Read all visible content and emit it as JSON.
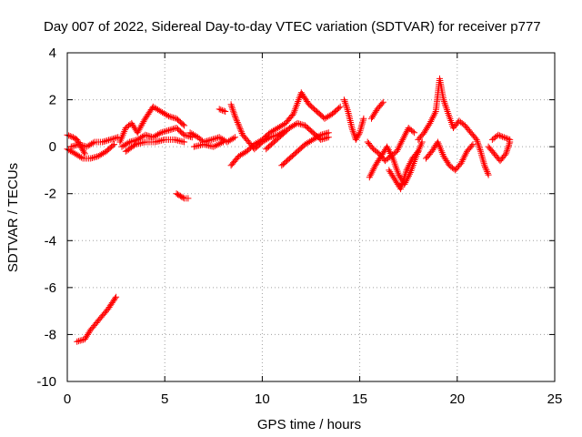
{
  "chart_data": {
    "type": "scatter",
    "title": "Day 007 of 2022, Sidereal Day-to-day VTEC variation (SDTVAR) for receiver p777",
    "xlabel": "GPS time / hours",
    "ylabel": "SDTVAR / TECUs",
    "xlim": [
      0,
      25
    ],
    "ylim": [
      -10,
      4
    ],
    "xticks": [
      "0",
      "5",
      "10",
      "15",
      "20",
      "25"
    ],
    "yticks": [
      "4",
      "2",
      "0",
      "-2",
      "-4",
      "-6",
      "-8",
      "-10"
    ],
    "grid": true,
    "marker": "+",
    "color": "#ff0000",
    "series": [
      {
        "name": "SDTVAR",
        "segments": [
          [
            [
              0.5,
              -8.3
            ],
            [
              0.9,
              -8.2
            ],
            [
              1.2,
              -7.8
            ],
            [
              1.5,
              -7.5
            ],
            [
              1.8,
              -7.2
            ],
            [
              2.1,
              -6.9
            ],
            [
              2.5,
              -6.4
            ]
          ],
          [
            [
              0.0,
              0.5
            ],
            [
              0.3,
              0.4
            ],
            [
              0.5,
              0.3
            ],
            [
              0.7,
              0.0
            ],
            [
              0.9,
              -0.3
            ]
          ],
          [
            [
              0.0,
              -0.1
            ],
            [
              0.4,
              -0.3
            ],
            [
              0.8,
              -0.5
            ],
            [
              1.2,
              -0.5
            ],
            [
              1.6,
              -0.4
            ],
            [
              2.0,
              -0.2
            ],
            [
              2.4,
              0.1
            ]
          ],
          [
            [
              0.2,
              0.0
            ],
            [
              0.6,
              0.1
            ],
            [
              1.0,
              0.0
            ],
            [
              1.4,
              0.2
            ],
            [
              1.8,
              0.2
            ],
            [
              2.2,
              0.3
            ],
            [
              2.6,
              0.4
            ]
          ],
          [
            [
              2.7,
              0.2
            ],
            [
              3.0,
              0.8
            ],
            [
              3.3,
              1.0
            ],
            [
              3.6,
              0.6
            ],
            [
              4.0,
              1.2
            ],
            [
              4.4,
              1.7
            ],
            [
              4.8,
              1.5
            ],
            [
              5.2,
              1.3
            ],
            [
              5.6,
              1.2
            ],
            [
              6.0,
              0.9
            ]
          ],
          [
            [
              2.8,
              0.0
            ],
            [
              3.2,
              0.2
            ],
            [
              3.6,
              0.3
            ],
            [
              4.0,
              0.5
            ],
            [
              4.4,
              0.4
            ],
            [
              4.8,
              0.6
            ],
            [
              5.2,
              0.7
            ],
            [
              5.6,
              0.8
            ],
            [
              6.0,
              0.5
            ],
            [
              6.4,
              0.4
            ]
          ],
          [
            [
              3.0,
              -0.2
            ],
            [
              3.5,
              0.1
            ],
            [
              4.0,
              0.2
            ],
            [
              4.5,
              0.2
            ],
            [
              5.0,
              0.3
            ],
            [
              5.5,
              0.3
            ],
            [
              6.0,
              0.2
            ]
          ],
          [
            [
              5.6,
              -2.0
            ],
            [
              5.8,
              -2.1
            ],
            [
              6.0,
              -2.2
            ],
            [
              6.2,
              -2.2
            ]
          ],
          [
            [
              6.3,
              0.6
            ],
            [
              6.7,
              0.4
            ],
            [
              7.0,
              0.2
            ],
            [
              7.4,
              0.3
            ],
            [
              7.8,
              0.4
            ],
            [
              8.2,
              0.2
            ],
            [
              8.6,
              0.4
            ]
          ],
          [
            [
              6.5,
              0.0
            ],
            [
              7.0,
              0.1
            ],
            [
              7.5,
              0.0
            ],
            [
              8.0,
              0.2
            ]
          ],
          [
            [
              7.8,
              1.6
            ],
            [
              8.1,
              1.5
            ]
          ],
          [
            [
              8.4,
              1.8
            ],
            [
              8.6,
              1.3
            ],
            [
              8.8,
              0.9
            ],
            [
              9.0,
              0.5
            ],
            [
              9.3,
              0.2
            ],
            [
              9.6,
              -0.1
            ],
            [
              10.0,
              0.2
            ],
            [
              10.4,
              0.4
            ],
            [
              10.8,
              0.5
            ],
            [
              11.2,
              0.7
            ]
          ],
          [
            [
              8.4,
              -0.8
            ],
            [
              8.8,
              -0.4
            ],
            [
              9.2,
              -0.2
            ],
            [
              9.6,
              0.1
            ],
            [
              10.0,
              0.3
            ],
            [
              10.4,
              0.6
            ],
            [
              10.8,
              0.8
            ],
            [
              11.2,
              1.0
            ],
            [
              11.6,
              1.4
            ],
            [
              12.0,
              2.3
            ],
            [
              12.4,
              1.8
            ],
            [
              12.8,
              1.5
            ],
            [
              13.2,
              1.2
            ],
            [
              13.6,
              1.4
            ],
            [
              14.0,
              1.7
            ]
          ],
          [
            [
              10.2,
              -0.1
            ],
            [
              10.6,
              0.2
            ],
            [
              11.0,
              0.5
            ],
            [
              11.4,
              0.8
            ],
            [
              11.8,
              1.0
            ],
            [
              12.2,
              0.9
            ],
            [
              12.6,
              0.6
            ],
            [
              13.0,
              0.3
            ],
            [
              13.4,
              0.4
            ]
          ],
          [
            [
              11.0,
              -0.8
            ],
            [
              11.4,
              -0.5
            ],
            [
              11.8,
              -0.2
            ],
            [
              12.2,
              0.1
            ],
            [
              12.6,
              0.3
            ],
            [
              13.0,
              0.5
            ],
            [
              13.4,
              0.6
            ]
          ],
          [
            [
              14.2,
              2.0
            ],
            [
              14.4,
              1.5
            ],
            [
              14.6,
              0.8
            ],
            [
              14.8,
              0.3
            ],
            [
              15.0,
              0.6
            ],
            [
              15.2,
              1.2
            ]
          ],
          [
            [
              15.6,
              1.2
            ],
            [
              15.9,
              1.6
            ],
            [
              16.2,
              1.9
            ]
          ],
          [
            [
              15.4,
              0.2
            ],
            [
              15.7,
              -0.1
            ],
            [
              16.0,
              -0.3
            ],
            [
              16.3,
              -0.6
            ],
            [
              16.6,
              -0.4
            ],
            [
              16.9,
              -0.2
            ],
            [
              17.2,
              0.3
            ],
            [
              17.5,
              0.8
            ],
            [
              17.8,
              0.6
            ]
          ],
          [
            [
              15.5,
              -1.3
            ],
            [
              15.8,
              -0.8
            ],
            [
              16.1,
              -0.4
            ],
            [
              16.4,
              0.0
            ],
            [
              16.7,
              -0.5
            ],
            [
              17.0,
              -1.2
            ],
            [
              17.3,
              -1.6
            ],
            [
              17.6,
              -1.1
            ],
            [
              17.9,
              -0.4
            ],
            [
              18.2,
              0.2
            ]
          ],
          [
            [
              16.5,
              -1.0
            ],
            [
              16.8,
              -1.4
            ],
            [
              17.1,
              -1.8
            ],
            [
              17.4,
              -1.0
            ],
            [
              17.7,
              -0.5
            ],
            [
              18.0,
              -0.2
            ]
          ],
          [
            [
              18.0,
              0.3
            ],
            [
              18.3,
              0.6
            ],
            [
              18.6,
              1.0
            ],
            [
              18.9,
              1.5
            ],
            [
              19.1,
              2.9
            ],
            [
              19.3,
              2.0
            ],
            [
              19.5,
              1.5
            ],
            [
              19.8,
              0.8
            ]
          ],
          [
            [
              18.4,
              -0.5
            ],
            [
              18.7,
              -0.2
            ],
            [
              19.0,
              0.2
            ],
            [
              19.3,
              -0.4
            ],
            [
              19.6,
              -0.8
            ],
            [
              19.9,
              -1.0
            ],
            [
              20.2,
              -0.7
            ],
            [
              20.5,
              -0.2
            ],
            [
              20.8,
              0.1
            ]
          ],
          [
            [
              19.8,
              0.8
            ],
            [
              20.1,
              1.1
            ],
            [
              20.4,
              0.9
            ],
            [
              20.7,
              0.6
            ],
            [
              21.0,
              0.3
            ],
            [
              21.2,
              -0.2
            ],
            [
              21.4,
              -0.8
            ],
            [
              21.6,
              -1.2
            ]
          ],
          [
            [
              21.6,
              0.0
            ],
            [
              21.9,
              -0.3
            ],
            [
              22.2,
              -0.6
            ],
            [
              22.5,
              -0.3
            ],
            [
              22.7,
              0.2
            ]
          ],
          [
            [
              21.8,
              0.3
            ],
            [
              22.1,
              0.5
            ],
            [
              22.4,
              0.4
            ],
            [
              22.7,
              0.3
            ]
          ]
        ]
      }
    ]
  }
}
